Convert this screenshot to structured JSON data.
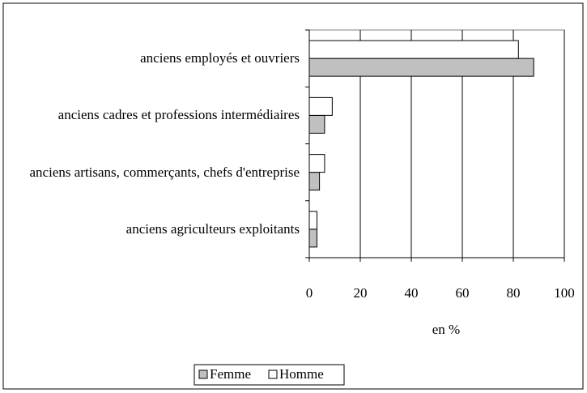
{
  "chart_data": {
    "type": "bar",
    "orientation": "horizontal",
    "categories": [
      "anciens employés et ouvriers",
      "anciens cadres et professions intermédiaires",
      "anciens artisans, commerçants, chefs d'entreprise",
      "anciens agriculteurs exploitants"
    ],
    "series": [
      {
        "name": "Femme",
        "color": "#c0c0c0",
        "values": [
          88,
          6,
          4,
          3
        ]
      },
      {
        "name": "Homme",
        "color": "#ffffff",
        "values": [
          82,
          9,
          6,
          3
        ]
      }
    ],
    "xlim": [
      0,
      100
    ],
    "xticks": [
      0,
      20,
      40,
      60,
      80,
      100
    ],
    "xlabel": "en %",
    "grid": true,
    "legend": "bottom"
  }
}
